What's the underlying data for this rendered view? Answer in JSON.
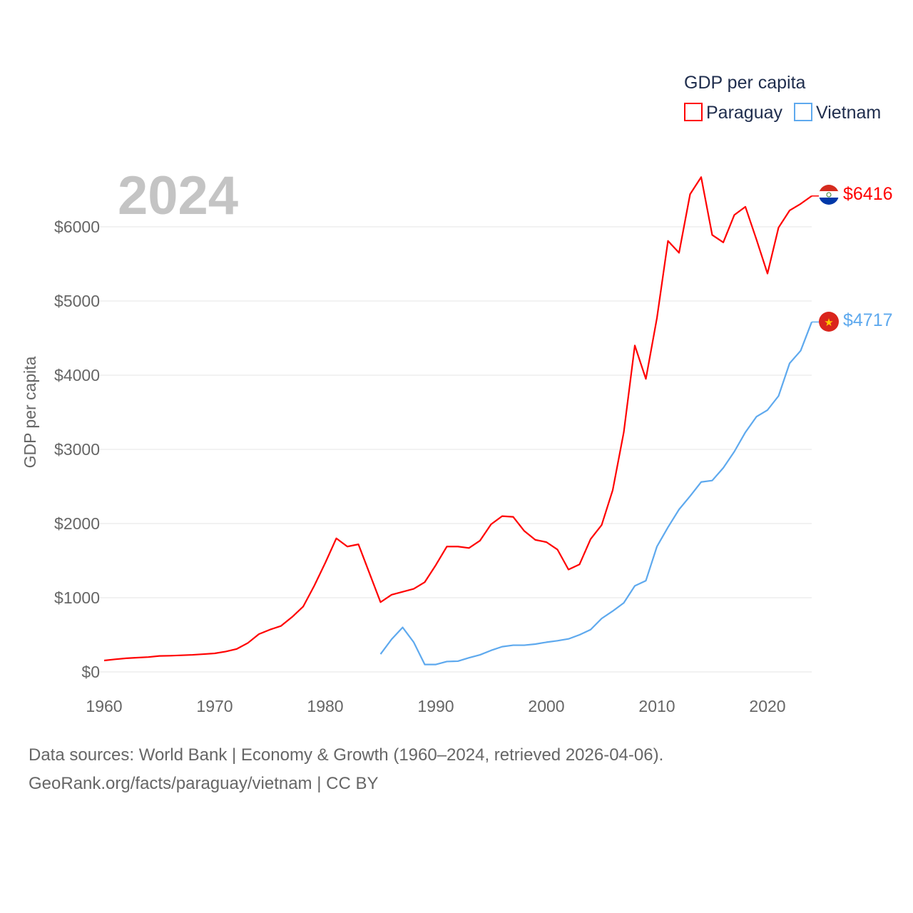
{
  "chart_data": {
    "type": "line",
    "title": "GDP per capita",
    "year_label": "2024",
    "xlabel": "",
    "ylabel": "GDP per capita",
    "xlim": [
      1960,
      2024
    ],
    "ylim": [
      0,
      6900
    ],
    "xticks": [
      1960,
      1970,
      1980,
      1990,
      2000,
      2010,
      2020
    ],
    "yticks": [
      0,
      1000,
      2000,
      3000,
      4000,
      5000,
      6000
    ],
    "ytick_labels": [
      "$0",
      "$1000",
      "$2000",
      "$3000",
      "$4000",
      "$5000",
      "$6000"
    ],
    "grid": true,
    "legend_placement": "top-right",
    "series": [
      {
        "name": "Paraguay",
        "color": "#ff0000",
        "end_label": "$6416",
        "x": [
          1960,
          1961,
          1962,
          1963,
          1964,
          1965,
          1966,
          1967,
          1968,
          1969,
          1970,
          1971,
          1972,
          1973,
          1974,
          1975,
          1976,
          1977,
          1978,
          1979,
          1980,
          1981,
          1982,
          1983,
          1984,
          1985,
          1986,
          1987,
          1988,
          1989,
          1990,
          1991,
          1992,
          1993,
          1994,
          1995,
          1996,
          1997,
          1998,
          1999,
          2000,
          2001,
          2002,
          2003,
          2004,
          2005,
          2006,
          2007,
          2008,
          2009,
          2010,
          2011,
          2012,
          2013,
          2014,
          2015,
          2016,
          2017,
          2018,
          2019,
          2020,
          2021,
          2022,
          2023,
          2024
        ],
        "values": [
          154,
          170,
          184,
          192,
          200,
          215,
          218,
          224,
          230,
          240,
          250,
          275,
          310,
          390,
          510,
          570,
          620,
          740,
          880,
          1160,
          1470,
          1800,
          1690,
          1720,
          1330,
          940,
          1040,
          1080,
          1120,
          1210,
          1440,
          1690,
          1690,
          1670,
          1770,
          1990,
          2100,
          2090,
          1900,
          1780,
          1750,
          1650,
          1380,
          1450,
          1790,
          1980,
          2450,
          3230,
          4400,
          3950,
          4770,
          5810,
          5650,
          6440,
          6670,
          5890,
          5790,
          6160,
          6270,
          5830,
          5370,
          5990,
          6220,
          6310,
          6416
        ]
      },
      {
        "name": "Vietnam",
        "color": "#5ea9ee",
        "end_label": "$4717",
        "x": [
          1985,
          1986,
          1987,
          1988,
          1989,
          1990,
          1991,
          1992,
          1993,
          1994,
          1995,
          1996,
          1997,
          1998,
          1999,
          2000,
          2001,
          2002,
          2003,
          2004,
          2005,
          2006,
          2007,
          2008,
          2009,
          2010,
          2011,
          2012,
          2013,
          2014,
          2015,
          2016,
          2017,
          2018,
          2019,
          2020,
          2021,
          2022,
          2023,
          2024
        ],
        "values": [
          240,
          440,
          600,
          400,
          100,
          100,
          140,
          145,
          190,
          230,
          290,
          340,
          360,
          360,
          375,
          400,
          420,
          445,
          500,
          570,
          720,
          820,
          930,
          1160,
          1230,
          1690,
          1950,
          2190,
          2370,
          2560,
          2580,
          2750,
          2970,
          3230,
          3440,
          3530,
          3720,
          4160,
          4330,
          4717
        ]
      }
    ]
  },
  "footer": {
    "line1": "Data sources: World Bank | Economy & Growth (1960–2024, retrieved 2026-04-06).",
    "line2": "GeoRank.org/facts/paraguay/vietnam | CC BY"
  }
}
